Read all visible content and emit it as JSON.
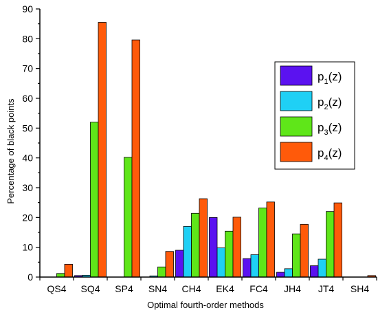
{
  "chart_data": {
    "type": "bar",
    "xlabel": "Optimal fourth-order methods",
    "ylabel": "Percentage of black points",
    "ylim": [
      0,
      90
    ],
    "yticks": [
      0,
      10,
      20,
      30,
      40,
      50,
      60,
      70,
      80,
      90
    ],
    "categories": [
      "QS4",
      "SQ4",
      "SP4",
      "SN4",
      "CH4",
      "EK4",
      "FC4",
      "JH4",
      "JT4",
      "SH4"
    ],
    "legend_position": "right",
    "grid": false,
    "series": [
      {
        "name": "p1(z)",
        "base": "p",
        "sub": "1",
        "suffix": "(z)",
        "color": "#5b12f0",
        "values": [
          0,
          0.5,
          0,
          0,
          9,
          20,
          6.2,
          1.6,
          3.8,
          0
        ]
      },
      {
        "name": "p2(z)",
        "base": "p",
        "sub": "2",
        "suffix": "(z)",
        "color": "#1fd0f5",
        "values": [
          0,
          0.6,
          0,
          0.4,
          17,
          9.8,
          7.5,
          2.8,
          6,
          0
        ]
      },
      {
        "name": "p3(z)",
        "base": "p",
        "sub": "3",
        "suffix": "(z)",
        "color": "#5fe619",
        "values": [
          1.2,
          52,
          40.2,
          3.4,
          21.4,
          15.4,
          23.2,
          14.5,
          22,
          0
        ]
      },
      {
        "name": "p4(z)",
        "base": "p",
        "sub": "4",
        "suffix": "(z)",
        "color": "#ff5a0a",
        "values": [
          4.3,
          85.5,
          79.6,
          8.6,
          26.3,
          20.1,
          25.2,
          17.7,
          24.9,
          0.5
        ]
      }
    ]
  }
}
